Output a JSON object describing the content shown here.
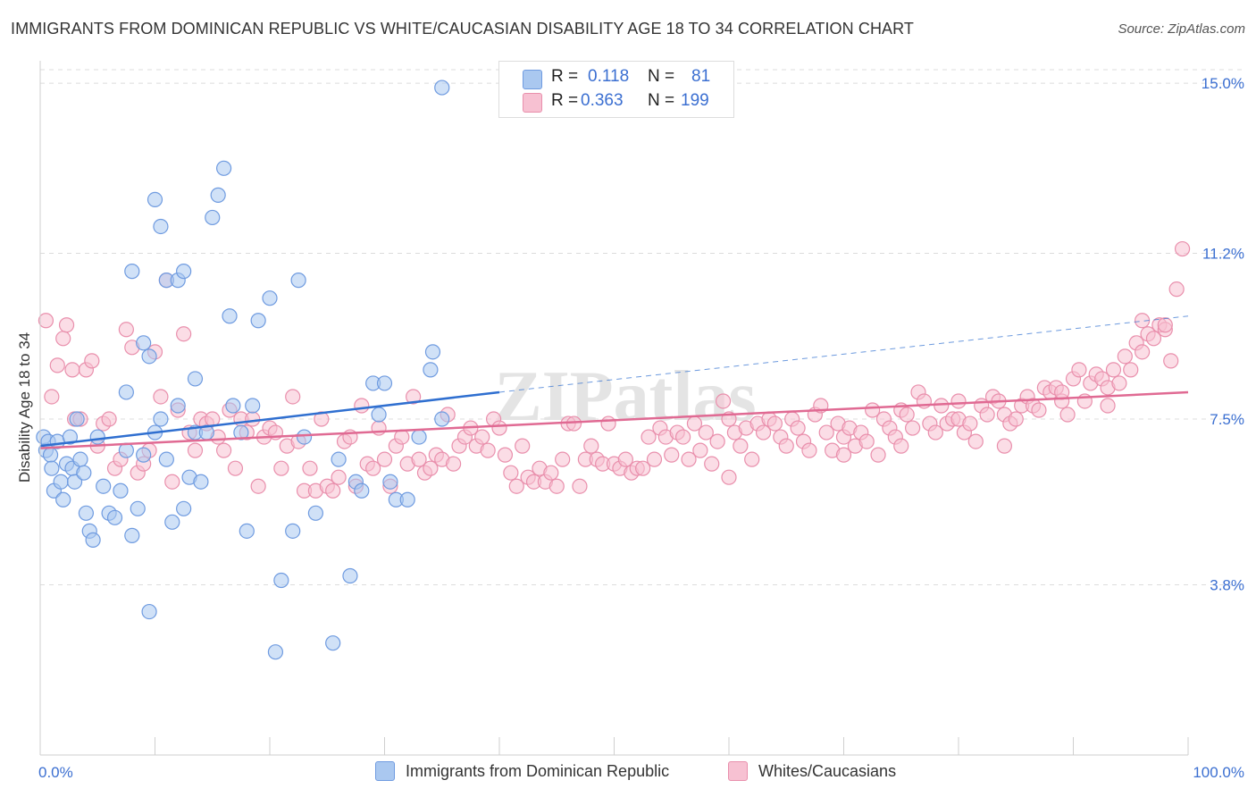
{
  "header": {
    "title": "IMMIGRANTS FROM DOMINICAN REPUBLIC VS WHITE/CAUCASIAN DISABILITY AGE 18 TO 34 CORRELATION CHART",
    "source": "Source: ZipAtlas.com"
  },
  "watermark": "ZIPatlas",
  "legend_top": {
    "rows": [
      {
        "r_label": "R =",
        "r_value": "0.118",
        "n_label": "N =",
        "n_value": "81",
        "color": "#aac8f0",
        "stroke": "#6f9be0"
      },
      {
        "r_label": "R =",
        "r_value": "0.363",
        "n_label": "N =",
        "n_value": "199",
        "color": "#f7c1d2",
        "stroke": "#e98fac"
      }
    ]
  },
  "legend_bottom": {
    "items": [
      {
        "label": "Immigrants from Dominican Republic",
        "color": "#aac8f0",
        "stroke": "#6f9be0"
      },
      {
        "label": "Whites/Caucasians",
        "color": "#f7c1d2",
        "stroke": "#e98fac"
      }
    ]
  },
  "chart_data": {
    "type": "scatter",
    "title": "IMMIGRANTS FROM DOMINICAN REPUBLIC VS WHITE/CAUCASIAN DISABILITY AGE 18 TO 34 CORRELATION CHART",
    "xlabel": "",
    "ylabel": "Disability Age 18 to 34",
    "xlim": [
      0,
      100
    ],
    "ylim": [
      0,
      15.5
    ],
    "x_tick_labels": [
      "0.0%",
      "100.0%"
    ],
    "y_ticks": [
      3.8,
      7.5,
      11.2,
      15.0
    ],
    "y_tick_labels": [
      "3.8%",
      "7.5%",
      "11.2%",
      "15.0%"
    ],
    "grid": true,
    "legend_position": "top-center",
    "series": [
      {
        "name": "Immigrants from Dominican Republic",
        "color": "#6f9be0",
        "fill": "#aac8f0",
        "trend_color": "#2f6fd0",
        "trend": {
          "x": [
            0,
            40
          ],
          "y": [
            6.9,
            8.1
          ]
        },
        "trend_dashed": {
          "x": [
            40,
            100
          ],
          "y": [
            8.1,
            9.8
          ]
        },
        "points": [
          [
            0.3,
            7.1
          ],
          [
            0.5,
            6.8
          ],
          [
            0.7,
            7.0
          ],
          [
            0.9,
            6.7
          ],
          [
            1.0,
            6.4
          ],
          [
            1.2,
            5.9
          ],
          [
            1.5,
            7.0
          ],
          [
            1.8,
            6.1
          ],
          [
            2.0,
            5.7
          ],
          [
            2.3,
            6.5
          ],
          [
            2.6,
            7.1
          ],
          [
            2.8,
            6.4
          ],
          [
            3.0,
            6.1
          ],
          [
            3.2,
            7.5
          ],
          [
            3.5,
            6.6
          ],
          [
            3.8,
            6.3
          ],
          [
            4.0,
            5.4
          ],
          [
            4.3,
            5.0
          ],
          [
            4.6,
            4.8
          ],
          [
            5.0,
            7.1
          ],
          [
            5.5,
            6.0
          ],
          [
            6.0,
            5.4
          ],
          [
            6.5,
            5.3
          ],
          [
            7.0,
            5.9
          ],
          [
            7.5,
            6.8
          ],
          [
            8.0,
            4.9
          ],
          [
            8.5,
            5.5
          ],
          [
            9.0,
            6.7
          ],
          [
            9.5,
            3.2
          ],
          [
            10.0,
            7.2
          ],
          [
            10.5,
            7.5
          ],
          [
            11.0,
            6.6
          ],
          [
            11.5,
            5.2
          ],
          [
            12.0,
            7.8
          ],
          [
            12.5,
            5.5
          ],
          [
            13.0,
            6.2
          ],
          [
            13.5,
            7.2
          ],
          [
            14.0,
            6.1
          ],
          [
            9.0,
            9.2
          ],
          [
            9.5,
            8.9
          ],
          [
            7.5,
            8.1
          ],
          [
            8.0,
            10.8
          ],
          [
            10.0,
            12.4
          ],
          [
            10.5,
            11.8
          ],
          [
            11.0,
            10.6
          ],
          [
            12.0,
            10.6
          ],
          [
            12.5,
            10.8
          ],
          [
            13.5,
            8.4
          ],
          [
            14.5,
            7.2
          ],
          [
            15.0,
            12.0
          ],
          [
            15.5,
            12.5
          ],
          [
            16.0,
            13.1
          ],
          [
            16.5,
            9.8
          ],
          [
            16.8,
            7.8
          ],
          [
            17.5,
            7.2
          ],
          [
            18.0,
            5.0
          ],
          [
            18.5,
            7.8
          ],
          [
            19.0,
            9.7
          ],
          [
            20.0,
            10.2
          ],
          [
            21.0,
            3.9
          ],
          [
            20.5,
            2.3
          ],
          [
            22.0,
            5.0
          ],
          [
            22.5,
            10.6
          ],
          [
            23.0,
            7.1
          ],
          [
            24.0,
            5.4
          ],
          [
            25.5,
            2.5
          ],
          [
            26.0,
            6.6
          ],
          [
            27.0,
            4.0
          ],
          [
            27.5,
            6.1
          ],
          [
            28.0,
            5.9
          ],
          [
            29.0,
            8.3
          ],
          [
            29.5,
            7.6
          ],
          [
            30.0,
            8.3
          ],
          [
            30.5,
            6.1
          ],
          [
            31.0,
            5.7
          ],
          [
            32.0,
            5.7
          ],
          [
            33.0,
            7.1
          ],
          [
            34.0,
            8.6
          ],
          [
            34.2,
            9.0
          ],
          [
            35.0,
            7.5
          ],
          [
            35.0,
            14.9
          ]
        ]
      },
      {
        "name": "Whites/Caucasians",
        "color": "#e98fac",
        "fill": "#f7c1d2",
        "trend_color": "#e06a93",
        "trend": {
          "x": [
            0,
            100
          ],
          "y": [
            6.85,
            8.1
          ]
        },
        "points": [
          [
            0.5,
            9.7
          ],
          [
            1.0,
            8.0
          ],
          [
            1.5,
            8.7
          ],
          [
            2.0,
            9.3
          ],
          [
            2.3,
            9.6
          ],
          [
            2.8,
            8.6
          ],
          [
            3.0,
            7.5
          ],
          [
            3.5,
            7.5
          ],
          [
            4.0,
            8.6
          ],
          [
            4.5,
            8.8
          ],
          [
            5.0,
            6.9
          ],
          [
            5.5,
            7.4
          ],
          [
            6.0,
            7.5
          ],
          [
            6.5,
            6.4
          ],
          [
            7.0,
            6.6
          ],
          [
            7.5,
            9.5
          ],
          [
            8.0,
            9.1
          ],
          [
            8.5,
            6.3
          ],
          [
            9.0,
            6.5
          ],
          [
            9.5,
            6.8
          ],
          [
            10.0,
            9.0
          ],
          [
            10.5,
            8.0
          ],
          [
            11.0,
            10.6
          ],
          [
            11.5,
            6.1
          ],
          [
            12.0,
            7.7
          ],
          [
            12.5,
            9.4
          ],
          [
            13.0,
            7.2
          ],
          [
            13.5,
            6.8
          ],
          [
            14.0,
            7.5
          ],
          [
            14.5,
            7.4
          ],
          [
            15.0,
            7.5
          ],
          [
            15.5,
            7.1
          ],
          [
            16.0,
            6.8
          ],
          [
            16.5,
            7.7
          ],
          [
            17.0,
            6.4
          ],
          [
            17.5,
            7.5
          ],
          [
            18.0,
            7.2
          ],
          [
            18.5,
            7.5
          ],
          [
            19.0,
            6.0
          ],
          [
            19.5,
            7.1
          ],
          [
            20.0,
            7.3
          ],
          [
            20.5,
            7.2
          ],
          [
            21.0,
            6.4
          ],
          [
            21.5,
            6.9
          ],
          [
            22.0,
            8.0
          ],
          [
            22.5,
            7.0
          ],
          [
            23.0,
            5.9
          ],
          [
            23.5,
            6.4
          ],
          [
            24.0,
            5.9
          ],
          [
            24.5,
            7.5
          ],
          [
            25.0,
            6.0
          ],
          [
            25.5,
            5.9
          ],
          [
            26.0,
            6.2
          ],
          [
            26.5,
            7.0
          ],
          [
            27.0,
            7.1
          ],
          [
            27.5,
            6.0
          ],
          [
            28.0,
            7.8
          ],
          [
            28.5,
            6.5
          ],
          [
            29.0,
            6.4
          ],
          [
            29.5,
            7.3
          ],
          [
            30.0,
            6.6
          ],
          [
            30.5,
            6.0
          ],
          [
            31.0,
            6.9
          ],
          [
            31.5,
            7.1
          ],
          [
            32.0,
            6.5
          ],
          [
            32.5,
            8.0
          ],
          [
            33.0,
            6.6
          ],
          [
            33.5,
            6.3
          ],
          [
            34.0,
            6.4
          ],
          [
            34.5,
            6.7
          ],
          [
            35.0,
            6.6
          ],
          [
            35.5,
            7.6
          ],
          [
            36.0,
            6.5
          ],
          [
            36.5,
            6.9
          ],
          [
            37.0,
            7.1
          ],
          [
            37.5,
            7.3
          ],
          [
            38.0,
            6.9
          ],
          [
            38.5,
            7.1
          ],
          [
            39.0,
            6.8
          ],
          [
            39.5,
            7.5
          ],
          [
            40.0,
            7.3
          ],
          [
            40.5,
            6.7
          ],
          [
            41.0,
            6.3
          ],
          [
            41.5,
            6.0
          ],
          [
            42.0,
            6.9
          ],
          [
            42.5,
            6.2
          ],
          [
            43.0,
            6.1
          ],
          [
            43.5,
            6.4
          ],
          [
            44.0,
            6.1
          ],
          [
            44.5,
            6.3
          ],
          [
            45.0,
            6.0
          ],
          [
            45.5,
            6.6
          ],
          [
            46.0,
            7.4
          ],
          [
            46.5,
            7.4
          ],
          [
            47.0,
            6.0
          ],
          [
            47.5,
            6.6
          ],
          [
            48.0,
            6.9
          ],
          [
            48.5,
            6.6
          ],
          [
            49.0,
            6.5
          ],
          [
            49.5,
            7.4
          ],
          [
            50.0,
            6.5
          ],
          [
            50.5,
            6.4
          ],
          [
            51.0,
            6.6
          ],
          [
            51.5,
            6.3
          ],
          [
            52.0,
            6.4
          ],
          [
            52.5,
            6.4
          ],
          [
            53.0,
            7.1
          ],
          [
            53.5,
            6.6
          ],
          [
            54.0,
            7.3
          ],
          [
            54.5,
            7.1
          ],
          [
            55.0,
            6.7
          ],
          [
            55.5,
            7.2
          ],
          [
            56.0,
            7.1
          ],
          [
            56.5,
            6.6
          ],
          [
            57.0,
            7.4
          ],
          [
            57.5,
            6.8
          ],
          [
            58.0,
            7.2
          ],
          [
            58.5,
            6.5
          ],
          [
            59.0,
            7.0
          ],
          [
            59.5,
            7.9
          ],
          [
            60.0,
            7.5
          ],
          [
            60.5,
            7.2
          ],
          [
            61.0,
            6.9
          ],
          [
            61.5,
            7.3
          ],
          [
            62.0,
            6.6
          ],
          [
            62.5,
            7.4
          ],
          [
            63.0,
            7.2
          ],
          [
            63.5,
            7.5
          ],
          [
            64.0,
            7.4
          ],
          [
            64.5,
            7.1
          ],
          [
            65.0,
            6.9
          ],
          [
            65.5,
            7.5
          ],
          [
            66.0,
            7.3
          ],
          [
            66.5,
            7.0
          ],
          [
            67.0,
            6.8
          ],
          [
            67.5,
            7.6
          ],
          [
            68.0,
            7.8
          ],
          [
            68.5,
            7.2
          ],
          [
            69.0,
            6.8
          ],
          [
            69.5,
            7.4
          ],
          [
            70.0,
            7.1
          ],
          [
            70.5,
            7.3
          ],
          [
            71.0,
            6.9
          ],
          [
            71.5,
            7.2
          ],
          [
            72.0,
            7.0
          ],
          [
            72.5,
            7.7
          ],
          [
            73.0,
            6.7
          ],
          [
            73.5,
            7.5
          ],
          [
            74.0,
            7.3
          ],
          [
            74.5,
            7.1
          ],
          [
            75.0,
            7.7
          ],
          [
            75.5,
            7.6
          ],
          [
            76.0,
            7.3
          ],
          [
            76.5,
            8.1
          ],
          [
            77.0,
            7.9
          ],
          [
            77.5,
            7.4
          ],
          [
            78.0,
            7.2
          ],
          [
            78.5,
            7.8
          ],
          [
            79.0,
            7.4
          ],
          [
            79.5,
            7.5
          ],
          [
            80.0,
            7.5
          ],
          [
            80.5,
            7.2
          ],
          [
            81.0,
            7.4
          ],
          [
            81.5,
            7.0
          ],
          [
            82.0,
            7.8
          ],
          [
            82.5,
            7.6
          ],
          [
            83.0,
            8.0
          ],
          [
            83.5,
            7.9
          ],
          [
            84.0,
            7.6
          ],
          [
            84.5,
            7.4
          ],
          [
            85.0,
            7.5
          ],
          [
            85.5,
            7.8
          ],
          [
            86.0,
            8.0
          ],
          [
            86.5,
            7.8
          ],
          [
            87.0,
            7.7
          ],
          [
            87.5,
            8.2
          ],
          [
            88.0,
            8.1
          ],
          [
            88.5,
            8.2
          ],
          [
            89.0,
            7.9
          ],
          [
            89.5,
            7.6
          ],
          [
            90.0,
            8.4
          ],
          [
            90.5,
            8.6
          ],
          [
            91.0,
            7.9
          ],
          [
            91.5,
            8.3
          ],
          [
            92.0,
            8.5
          ],
          [
            92.5,
            8.4
          ],
          [
            93.0,
            8.2
          ],
          [
            93.5,
            8.6
          ],
          [
            94.0,
            8.3
          ],
          [
            94.5,
            8.9
          ],
          [
            95.0,
            8.6
          ],
          [
            95.5,
            9.2
          ],
          [
            96.0,
            9.0
          ],
          [
            96.5,
            9.4
          ],
          [
            97.0,
            9.3
          ],
          [
            97.5,
            9.6
          ],
          [
            98.0,
            9.5
          ],
          [
            98.5,
            8.8
          ],
          [
            99.0,
            10.4
          ],
          [
            99.5,
            11.3
          ],
          [
            60.0,
            6.2
          ],
          [
            70.0,
            6.7
          ],
          [
            75.0,
            6.9
          ],
          [
            80.0,
            7.9
          ],
          [
            84.0,
            6.9
          ],
          [
            89.0,
            8.1
          ],
          [
            93.0,
            7.8
          ],
          [
            96.0,
            9.7
          ],
          [
            98.0,
            9.6
          ]
        ]
      }
    ]
  }
}
